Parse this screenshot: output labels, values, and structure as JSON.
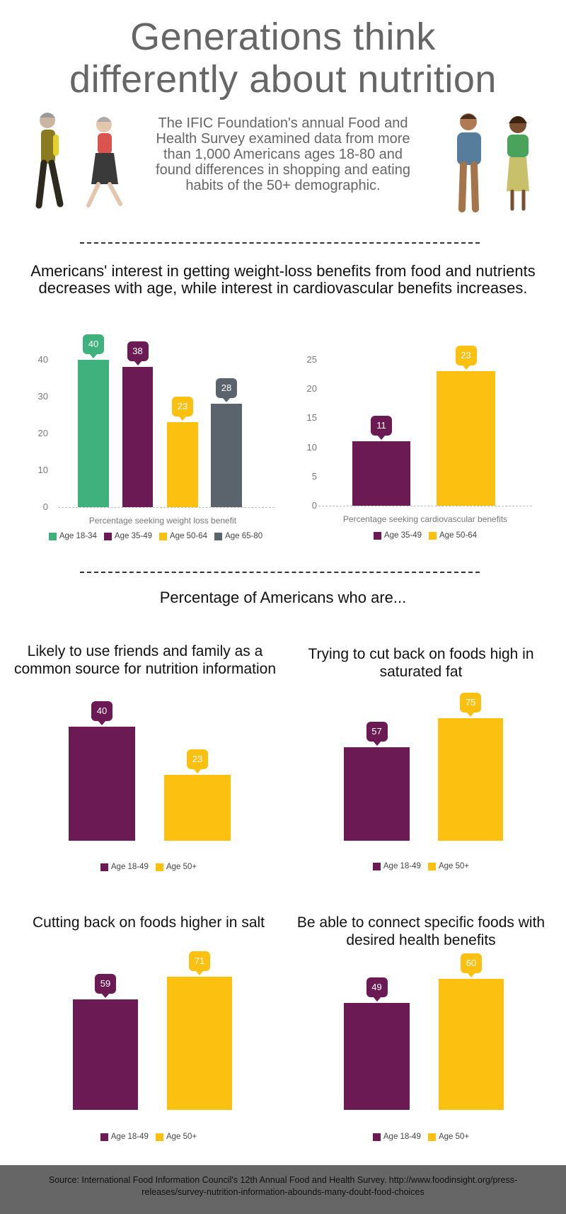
{
  "title": [
    "Generations think",
    "differently about nutrition"
  ],
  "intro": "The IFIC Foundation's annual Food and Health Survey examined data from more than 1,000 Americans ages 18-80 and found differences in shopping and eating habits of the 50+ demographic.",
  "section1_heading": "Americans' interest in getting weight-loss benefits from food and nutrients decreases with age, while interest in cardiovascular benefits increases.",
  "section2_heading": "Percentage of Americans who are...",
  "footer": "Source: International Food Information Council's 12th Annual Food and Health Survey. http://www.foodinsight.org/press-releases/survey-nutrition-information-abounds-many-doubt-food-choices",
  "colors": {
    "green": "#3fb17c",
    "purple": "#6b1a53",
    "yellow": "#fcc010",
    "gray": "#5b646c"
  },
  "illustrations": [
    "older-couple-walking",
    "younger-couple-standing"
  ],
  "chart_data": [
    {
      "type": "bar",
      "title": "",
      "xlabel": "Percentage seeking weight loss benefit",
      "ylim": [
        0,
        40
      ],
      "yticks": [
        0,
        10,
        20,
        30,
        40
      ],
      "categories": [
        "Age 18-34",
        "Age 35-49",
        "Age 50-64",
        "Age 65-80"
      ],
      "values": [
        40,
        38,
        23,
        28
      ],
      "colors": [
        "#3fb17c",
        "#6b1a53",
        "#fcc010",
        "#5b646c"
      ],
      "legend": "bottom",
      "data_labels": true
    },
    {
      "type": "bar",
      "title": "",
      "xlabel": "Percentage seeking cardiovascular benefits",
      "ylim": [
        0,
        25
      ],
      "yticks": [
        0,
        5,
        10,
        15,
        20,
        25
      ],
      "categories": [
        "Age 35-49",
        "Age 50-64"
      ],
      "values": [
        11,
        23
      ],
      "colors": [
        "#6b1a53",
        "#fcc010"
      ],
      "legend": "bottom",
      "data_labels": true
    },
    {
      "type": "bar",
      "title": "Likely to use friends and family as a common source for nutrition information",
      "categories": [
        "Age 18-49",
        "Age 50+"
      ],
      "values": [
        40,
        23
      ],
      "colors": [
        "#6b1a53",
        "#fcc010"
      ],
      "legend": "bottom",
      "data_labels": true
    },
    {
      "type": "bar",
      "title": "Trying to cut back on foods high in saturated fat",
      "categories": [
        "Age 18-49",
        "Age 50+"
      ],
      "values": [
        57,
        75
      ],
      "colors": [
        "#6b1a53",
        "#fcc010"
      ],
      "legend": "bottom",
      "data_labels": true
    },
    {
      "type": "bar",
      "title": "Cutting back on foods higher in salt",
      "categories": [
        "Age 18-49",
        "Age 50+"
      ],
      "values": [
        59,
        71
      ],
      "colors": [
        "#6b1a53",
        "#fcc010"
      ],
      "legend": "bottom",
      "data_labels": true
    },
    {
      "type": "bar",
      "title": "Be able to connect specific foods with desired health benefits",
      "categories": [
        "Age 18-49",
        "Age 50+"
      ],
      "values": [
        49,
        60
      ],
      "colors": [
        "#6b1a53",
        "#fcc010"
      ],
      "legend": "bottom",
      "data_labels": true
    }
  ]
}
